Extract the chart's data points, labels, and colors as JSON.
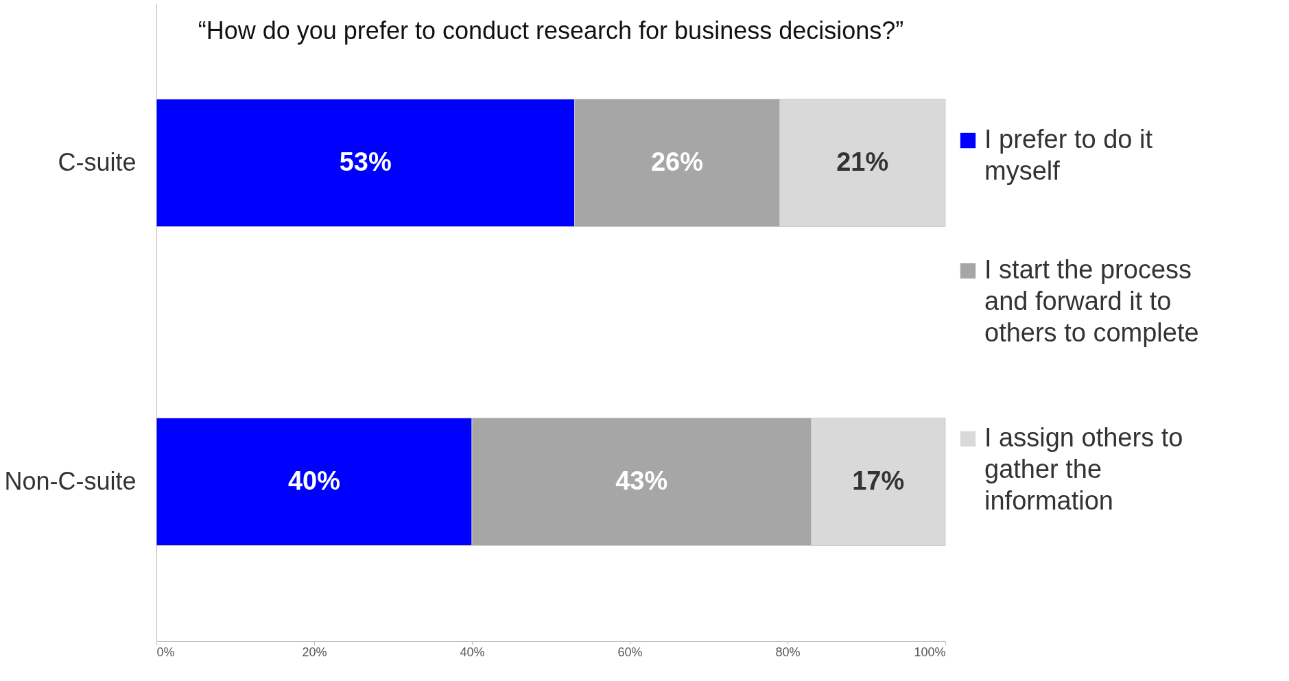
{
  "chart_data": {
    "type": "bar",
    "orientation": "horizontal",
    "stacked": true,
    "title": "“How do you prefer to conduct research for business decisions?”",
    "categories": [
      "C-suite",
      "Non-C-suite"
    ],
    "series": [
      {
        "name": "I prefer to do it myself",
        "color": "#0000ff",
        "values": [
          53,
          40
        ],
        "value_labels": [
          "53%",
          "40%"
        ]
      },
      {
        "name": "I start the process and forward it to others to complete",
        "color": "#a6a6a6",
        "values": [
          26,
          43
        ],
        "value_labels": [
          "26%",
          "43%"
        ]
      },
      {
        "name": "I assign others to gather the information",
        "color": "#d9d9d9",
        "values": [
          21,
          17
        ],
        "value_labels": [
          "21%",
          "17%"
        ]
      }
    ],
    "xlim": [
      0,
      100
    ],
    "xticks": [
      {
        "value": 0,
        "label": "0%"
      },
      {
        "value": 20,
        "label": "20%"
      },
      {
        "value": 40,
        "label": "40%"
      },
      {
        "value": 60,
        "label": "60%"
      },
      {
        "value": 80,
        "label": "80%"
      },
      {
        "value": 100,
        "label": "100%"
      }
    ],
    "legend": "right",
    "grid": false
  }
}
